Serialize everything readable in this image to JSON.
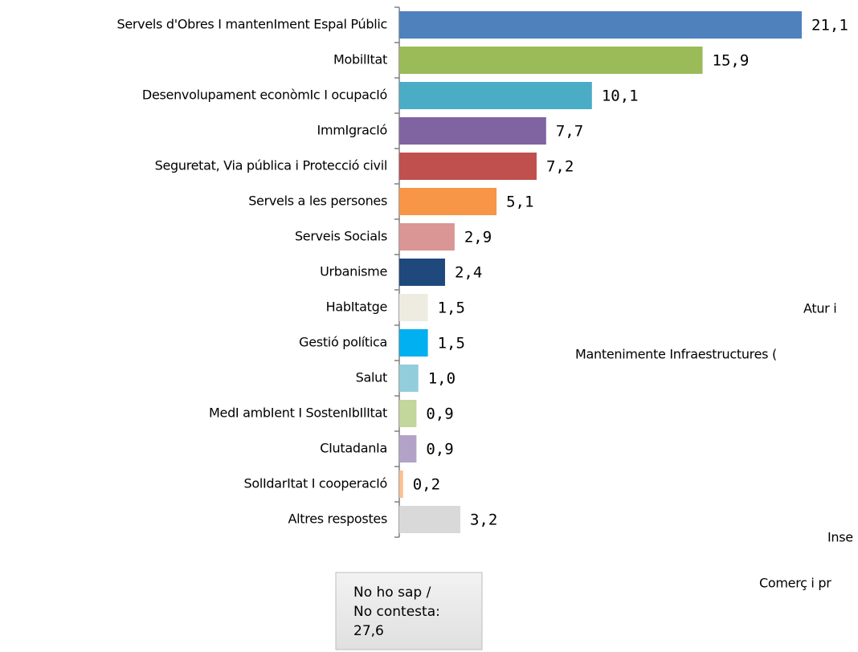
{
  "chart_data": {
    "type": "barh",
    "categories": [
      "Servels d'Obres I mantenIment Espal Públic",
      "MobilItat",
      "Desenvolupament econòmIc I ocupacIó",
      "ImmIgracIó",
      "Seguretat, Via pública i Protecció civil",
      "Servels a les persones",
      "Serveis Socials",
      "Urbanisme",
      "HabItatge",
      "Gestió política",
      "Salut",
      "MedI ambIent I SostenIbIlItat",
      "CIutadanIa",
      "SolIdarItat I cooperacIó",
      "Altres respostes"
    ],
    "values": [
      21.1,
      15.9,
      10.1,
      7.7,
      7.2,
      5.1,
      2.9,
      2.4,
      1.5,
      1.5,
      1.0,
      0.9,
      0.9,
      0.2,
      3.2
    ],
    "value_labels": [
      "21,1",
      "15,9",
      "10,1",
      "7,7",
      "7,2",
      "5,1",
      "2,9",
      "2,4",
      "1,5",
      "1,5",
      "1,0",
      "0,9",
      "0,9",
      "0,2",
      "3,2"
    ],
    "colors": [
      "#4f81bd",
      "#9bbb59",
      "#4bacc6",
      "#8064a2",
      "#c0504d",
      "#f79646",
      "#d99694",
      "#1f497d",
      "#eeece1",
      "#00b0f0",
      "#92cddc",
      "#c3d69b",
      "#b3a2c7",
      "#fac090",
      "#d9d9d9"
    ],
    "xlim": [
      0,
      21.1
    ],
    "annotations": [
      "Atur i",
      "Mantenimente Infraestructures (",
      "Inse",
      "Comerç i pr"
    ],
    "note": [
      "No ho sap /",
      "No contesta:",
      "27,6"
    ]
  }
}
